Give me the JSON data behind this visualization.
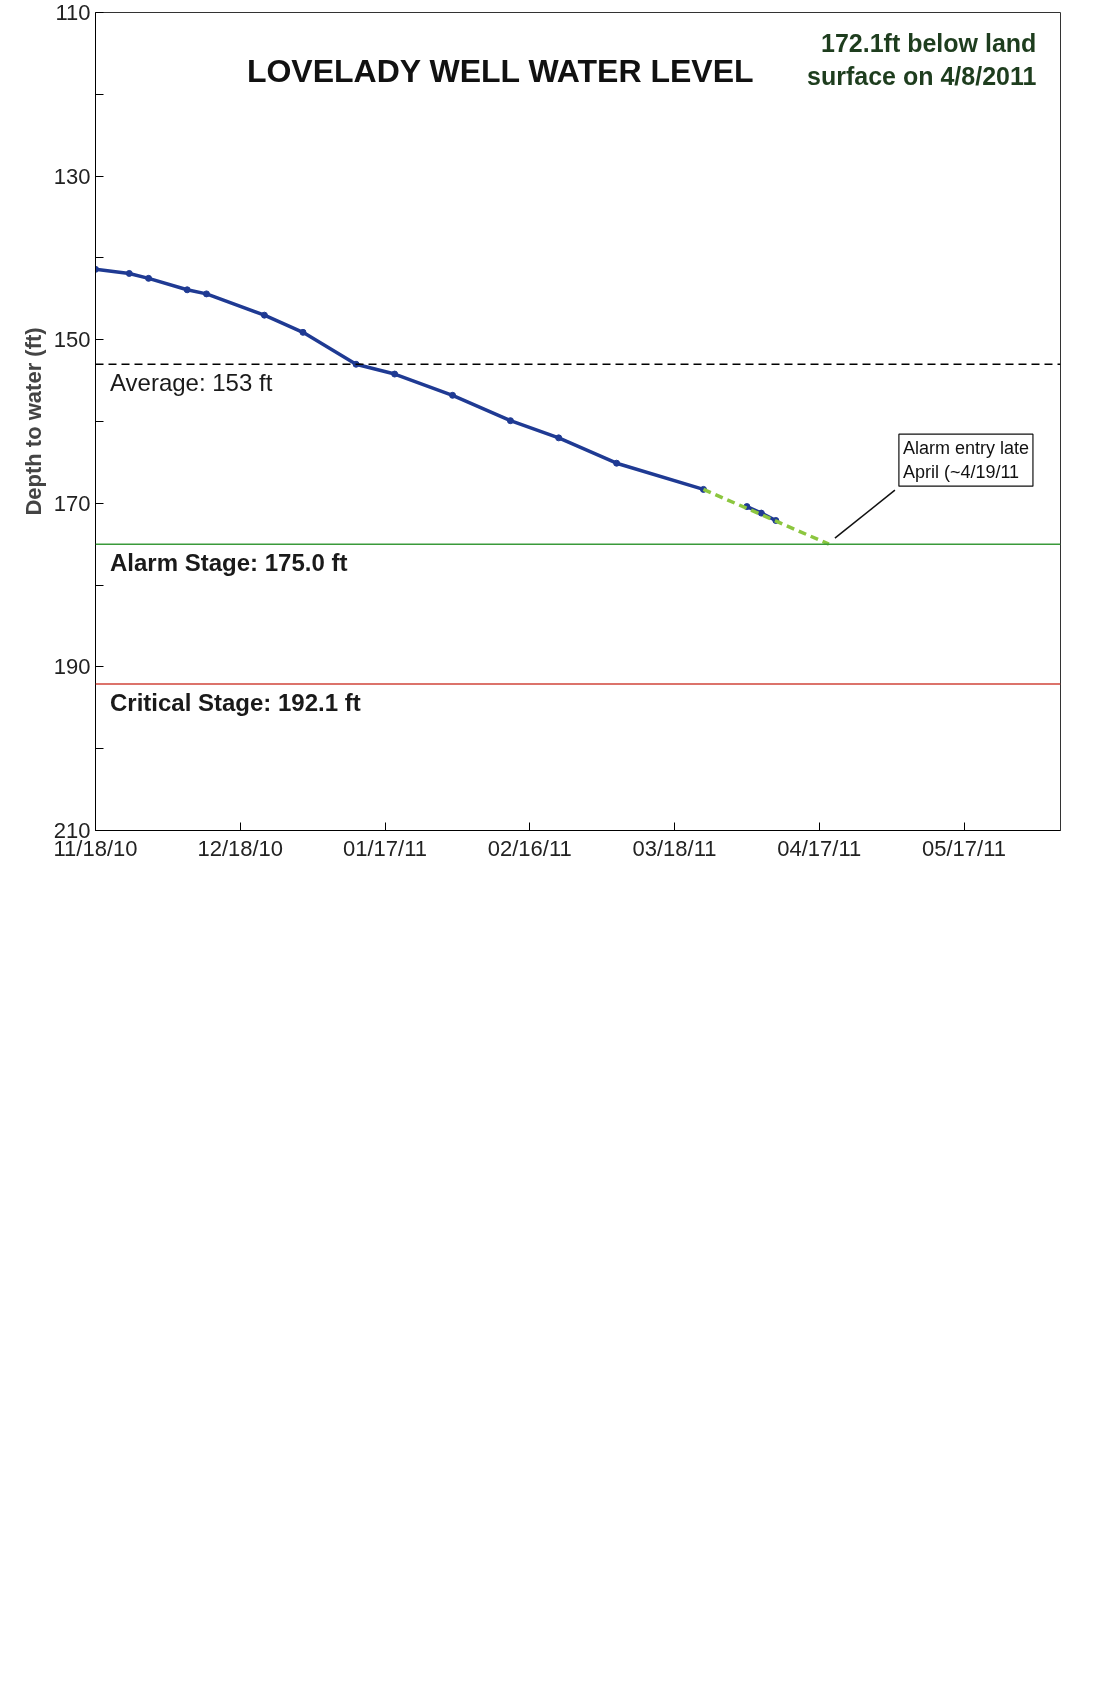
{
  "chart_data": {
    "type": "line",
    "title": "LOVELADY WELL WATER LEVEL",
    "ylabel": "Depth to water (ft)",
    "xlim": [
      "2010-11-18",
      "2011-06-06"
    ],
    "xticks": [
      {
        "value": "2010-11-18",
        "label": "11/18/10"
      },
      {
        "value": "2010-12-18",
        "label": "12/18/10"
      },
      {
        "value": "2011-01-17",
        "label": "01/17/11"
      },
      {
        "value": "2011-02-16",
        "label": "02/16/11"
      },
      {
        "value": "2011-03-18",
        "label": "03/18/11"
      },
      {
        "value": "2011-04-17",
        "label": "04/17/11"
      },
      {
        "value": "2011-05-17",
        "label": "05/17/11"
      }
    ],
    "ylim": [
      210,
      110
    ],
    "yticks": [
      110,
      {
        "value": 120,
        "label": null
      },
      130,
      {
        "value": 140,
        "label": null
      },
      150,
      {
        "value": 160,
        "label": null
      },
      170,
      {
        "value": 180,
        "label": null
      },
      190,
      {
        "value": 200,
        "label": null
      },
      210
    ],
    "grid": false,
    "marker": "circle",
    "line_style": "solid",
    "series": [
      {
        "color": "#1f3a93",
        "x": [
          "2010-11-18",
          "2010-11-25",
          "2010-11-29",
          "2010-12-07",
          "2010-12-11",
          "2010-12-23",
          "2010-12-31",
          "2011-01-11",
          "2011-01-19",
          "2011-01-31",
          "2011-02-12",
          "2011-02-22",
          "2011-03-06",
          "2011-03-24",
          "2011-03-28",
          "2011-04-02",
          "2011-04-05",
          "2011-04-08"
        ],
        "values": [
          141.4,
          141.9,
          142.5,
          143.9,
          144.4,
          147.0,
          149.1,
          153.0,
          154.2,
          156.8,
          159.9,
          162.0,
          165.1,
          168.3,
          null,
          170.4,
          171.2,
          172.1
        ]
      },
      {
        "color": "#8cc63f",
        "x": [
          "2011-03-24",
          "2011-04-19"
        ],
        "values": [
          168.3,
          175.0
        ],
        "line_style": "dashed",
        "marker": "none"
      }
    ],
    "ref_lines": [
      {
        "axis": "y",
        "value": 153,
        "label": "Average: 153 ft",
        "color": "#000000",
        "line_style": "dashed"
      },
      {
        "axis": "y",
        "value": 175.0,
        "label": "Alarm Stage: 175.0 ft",
        "color": "#3a9a3a",
        "line_style": "solid"
      },
      {
        "axis": "y",
        "value": 192.1,
        "label": "Critical Stage: 192.1 ft",
        "color": "#d0453a",
        "line_style": "solid"
      }
    ],
    "annotations": [
      "172.1ft below land\nsurface on 4/8/2011",
      {
        "text": "Alarm entry late\nApril  (~4/19/11",
        "x": "2011-04-19",
        "y": 175.0
      }
    ]
  }
}
